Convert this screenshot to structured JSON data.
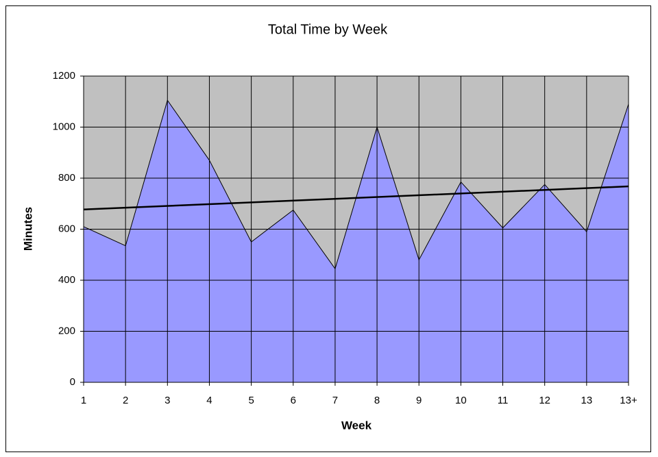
{
  "chart_data": {
    "type": "area",
    "title": "Total Time by Week",
    "x_label": "Week",
    "y_label": "Minutes",
    "categories": [
      "1",
      "2",
      "3",
      "4",
      "5",
      "6",
      "7",
      "8",
      "9",
      "10",
      "11",
      "12",
      "13",
      "13+"
    ],
    "values": [
      610,
      535,
      1105,
      870,
      550,
      675,
      445,
      1000,
      480,
      785,
      605,
      775,
      590,
      1090
    ],
    "color": "#9999ff",
    "plot_background": "#c0c0c0",
    "trendline": "linear",
    "ylim": [
      0,
      1200
    ],
    "yticks": [
      0,
      200,
      400,
      600,
      800,
      1000,
      1200
    ],
    "grid": true
  }
}
